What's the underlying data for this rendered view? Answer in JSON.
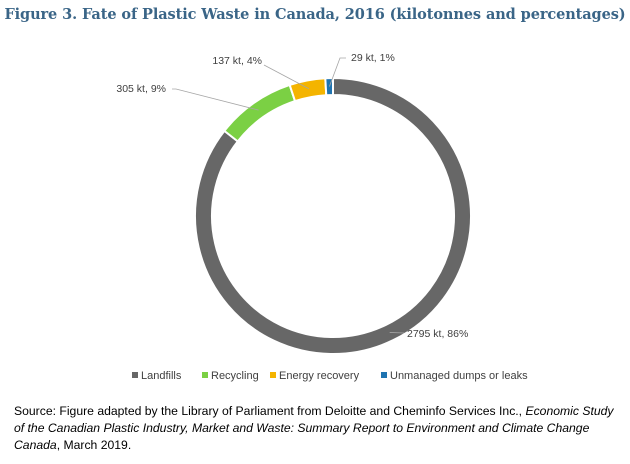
{
  "title": "Figure 3. Fate of Plastic Waste in Canada, 2016 (kilotonnes and percentages)",
  "chart_data": {
    "type": "pie",
    "variant": "donut",
    "title": "Figure 3. Fate of Plastic Waste in Canada, 2016 (kilotonnes and percentages)",
    "legend_position": "bottom",
    "slices": [
      {
        "name": "Landfills",
        "value": 2795,
        "percent": 86,
        "label": "2795 kt, 86%",
        "color": "#676767"
      },
      {
        "name": "Recycling",
        "value": 305,
        "percent": 9,
        "label": "305 kt, 9%",
        "color": "#7bd044"
      },
      {
        "name": "Energy recovery",
        "value": 137,
        "percent": 4,
        "label": "137 kt, 4%",
        "color": "#f4b400"
      },
      {
        "name": "Unmanaged dumps or leaks",
        "value": 29,
        "percent": 1,
        "label": "29 kt, 1%",
        "color": "#1f74b1"
      }
    ]
  },
  "source": {
    "prefix": "Source: Figure adapted by the Library of Parliament from Deloitte and Cheminfo Services Inc., ",
    "citation_title": "Economic Study of the Canadian Plastic Industry, Market and Waste: Summary Report to Environment and Climate Change Canada",
    "suffix": ", March 2019."
  }
}
